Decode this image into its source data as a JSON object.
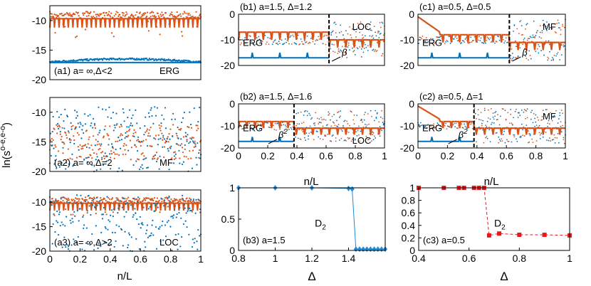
{
  "figure": {
    "ylabel_main": "ln(s",
    "ylabel_sup": "o-e,e-o",
    "ylabel_close": ")",
    "xlabel_left": "n/L",
    "xlabel_mid": "n/L",
    "xlabel_right": "n/L",
    "xlabel_delta_b": "Δ",
    "xlabel_delta_c": "Δ"
  },
  "colors": {
    "orange": "#d95319",
    "blue": "#0072bd",
    "blue_diamond": "#1f8dd6",
    "red_square": "#e41a1c",
    "axis": "#000000"
  },
  "chart_data": [
    {
      "id": "a1",
      "type": "scatter",
      "label_panel": "(a1) a=  ∞,Δ<2",
      "label_regime": "ERG",
      "xlim": [
        0,
        1
      ],
      "ylim": [
        -20,
        -7.5
      ],
      "yticks": [
        -10,
        -15,
        -20
      ],
      "xticks": [],
      "series": [
        {
          "name": "s_o-e",
          "color": "orange",
          "band": [
            -12.5,
            -8.5
          ],
          "pattern": "dense-dips"
        },
        {
          "name": "s_e-o",
          "color": "blue",
          "band": [
            -17.5,
            -16.5
          ],
          "pattern": "flat"
        }
      ]
    },
    {
      "id": "a2",
      "type": "scatter",
      "label_panel": "(a2) a=  ∞,Δ=2",
      "label_regime": "MF",
      "xlim": [
        0,
        1
      ],
      "ylim": [
        -20,
        -7.5
      ],
      "yticks": [
        -10,
        -15,
        -20
      ],
      "xticks": [],
      "series": [
        {
          "name": "s_o-e",
          "color": "orange",
          "band": [
            -18,
            -12
          ],
          "pattern": "noisy"
        },
        {
          "name": "s_e-o",
          "color": "blue",
          "band": [
            -20,
            -9
          ],
          "pattern": "noisy"
        }
      ]
    },
    {
      "id": "a3",
      "type": "scatter",
      "label_panel": "(a3) a=  ∞,Δ>2",
      "label_regime": "LOC",
      "xlim": [
        0,
        1
      ],
      "ylim": [
        -20,
        -7.5
      ],
      "yticks": [
        -10,
        -15,
        -20
      ],
      "xticks": [
        "0",
        "0.2",
        "0.4",
        "0.6",
        "0.8",
        "1"
      ],
      "series": [
        {
          "name": "s_o-e",
          "color": "orange",
          "band": [
            -12,
            -9
          ],
          "pattern": "dense-dips"
        },
        {
          "name": "s_e-o",
          "color": "blue",
          "band": [
            -20,
            -8.5
          ],
          "pattern": "sparse"
        }
      ]
    },
    {
      "id": "b1",
      "type": "scatter",
      "label_panel": "(b1) a=1.5,   Δ=1.2",
      "label_left": "ERG",
      "label_right": "LOC",
      "edge_symbol": "β",
      "edge": 0.62,
      "xlim": [
        0,
        1
      ],
      "ylim": [
        -20,
        0
      ],
      "yticks": [
        0,
        -10,
        -20
      ],
      "xticks": [],
      "series": [
        {
          "name": "s_o-e",
          "color": "orange",
          "level": -7
        },
        {
          "name": "s_e-o",
          "color": "blue",
          "level": -17
        }
      ]
    },
    {
      "id": "b2",
      "type": "scatter",
      "label_panel": "(b2) a=1.5,   Δ=1.6",
      "label_left": "ERG",
      "label_right": "LOC",
      "edge_symbol": "β",
      "edge_power": "2",
      "edge": 0.38,
      "xlim": [
        0,
        1
      ],
      "ylim": [
        -20,
        0
      ],
      "yticks": [
        0,
        -10,
        -20
      ],
      "xticks": [
        "0",
        "0.2",
        "0.4",
        "0.6",
        "0.8",
        "1"
      ],
      "series": [
        {
          "name": "s_o-e",
          "color": "orange",
          "level": -8
        },
        {
          "name": "s_e-o",
          "color": "blue",
          "level": -17
        }
      ]
    },
    {
      "id": "c1",
      "type": "scatter",
      "label_panel": "(c1) a=0.5,   Δ=0.5",
      "label_left": "ERG",
      "label_right": "MF",
      "edge_symbol": "β",
      "edge": 0.62,
      "xlim": [
        0,
        1
      ],
      "ylim": [
        -20,
        0
      ],
      "yticks": [
        0,
        -10,
        -20
      ],
      "xticks": [],
      "series": [
        {
          "name": "s_o-e",
          "color": "orange",
          "level": -8
        },
        {
          "name": "s_e-o",
          "color": "blue",
          "level": -17
        }
      ]
    },
    {
      "id": "c2",
      "type": "scatter",
      "label_panel": "(c2) a=0.5,    Δ=1",
      "label_left": "ERG",
      "label_right": "MF",
      "edge_symbol": "β",
      "edge_power": "2",
      "edge": 0.38,
      "xlim": [
        0,
        1
      ],
      "ylim": [
        -20,
        0
      ],
      "yticks": [
        0,
        -10,
        -20
      ],
      "xticks": [
        "0",
        "0.2",
        "0.4",
        "0.6",
        "0.8",
        "1"
      ],
      "series": [
        {
          "name": "s_o-e",
          "color": "orange",
          "level": -8
        },
        {
          "name": "s_e-o",
          "color": "blue",
          "level": -17
        }
      ]
    },
    {
      "id": "b3",
      "type": "line",
      "label_panel": "(b3) a=1.5",
      "label_series": "D",
      "label_sub": "2",
      "xlim": [
        0.8,
        1.6
      ],
      "ylim": [
        0,
        1
      ],
      "xticks": [
        "0.8",
        "1",
        "1.2",
        "1.4"
      ],
      "xtick_values": [
        0.8,
        1.0,
        1.2,
        1.4
      ],
      "yticks": [
        "0",
        "0.5",
        "1"
      ],
      "ytick_values": [
        0,
        0.5,
        1
      ],
      "x": [
        0.8,
        1.0,
        1.2,
        1.4,
        1.42,
        1.44,
        1.46,
        1.48,
        1.5,
        1.52,
        1.54,
        1.56,
        1.58,
        1.6
      ],
      "y": [
        1,
        1,
        1,
        0.99,
        0.98,
        0.02,
        0.02,
        0.02,
        0.02,
        0.02,
        0.02,
        0.02,
        0.02,
        0.02
      ],
      "marker": "diamond",
      "color": "blue_diamond",
      "linestyle": "solid"
    },
    {
      "id": "c3",
      "type": "line",
      "label_panel": "(c3) a=0.5",
      "label_series": "D",
      "label_sub": "2",
      "xlim": [
        0.4,
        1
      ],
      "ylim": [
        0,
        1
      ],
      "xticks": [
        "0.4",
        "0.6",
        "0.8",
        "1"
      ],
      "xtick_values": [
        0.4,
        0.6,
        0.8,
        1.0
      ],
      "yticks": [
        "0",
        "0.2",
        "0.4",
        "0.6",
        "0.8",
        "1"
      ],
      "ytick_values": [
        0,
        0.2,
        0.4,
        0.6,
        0.8,
        1
      ],
      "x": [
        0.4,
        0.5,
        0.56,
        0.58,
        0.62,
        0.64,
        0.66,
        0.68,
        0.72,
        0.8,
        0.9,
        1.0
      ],
      "y": [
        1,
        1,
        1,
        1,
        1,
        1,
        1,
        0.24,
        0.27,
        0.25,
        0.25,
        0.24
      ],
      "marker": "square",
      "color": "red_square",
      "linestyle": "dashed"
    }
  ]
}
